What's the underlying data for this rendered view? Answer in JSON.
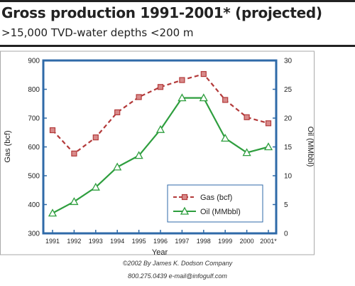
{
  "header": {
    "title": "Gross production 1991-2001* (projected)",
    "subtitle": ">15,000 TVD-water depths <200 m"
  },
  "chart_data": {
    "type": "line",
    "x": [
      "1991",
      "1992",
      "1993",
      "1994",
      "1995",
      "1996",
      "1997",
      "1998",
      "1999",
      "2000",
      "2001*"
    ],
    "xlabel": "Year",
    "ylabel_left": "Gas (bcf)",
    "ylabel_right": "Oil (MMbbl)",
    "ylim_left": [
      300,
      900
    ],
    "ylim_right": [
      0,
      30
    ],
    "yticks_left": [
      "300",
      "400",
      "500",
      "600",
      "700",
      "800",
      "900"
    ],
    "yticks_right": [
      "0",
      "5",
      "10",
      "15",
      "20",
      "25",
      "30"
    ],
    "grid": false,
    "legend_position": "lower-right",
    "series": [
      {
        "name": "Gas (bcf)",
        "axis": "left",
        "color": "#b33a3a",
        "marker": "square",
        "linestyle": "dashed",
        "values": [
          658,
          577,
          633,
          720,
          773,
          808,
          832,
          853,
          763,
          703,
          682
        ]
      },
      {
        "name": "Oil (MMbbl)",
        "axis": "right",
        "color": "#2e9e3e",
        "marker": "triangle",
        "linestyle": "solid",
        "values": [
          3.5,
          5.5,
          8.0,
          11.5,
          13.5,
          18.0,
          23.5,
          23.5,
          16.5,
          14.0,
          15.0
        ]
      }
    ]
  },
  "footer": {
    "credit_line_1": "©2002 By James K. Dodson Company",
    "credit_line_2": "800.275.0439 e-mail@infogulf.com"
  },
  "colors": {
    "plot_border": "#2f6aa8",
    "plot_background": "#ffffff",
    "outer_frame": "#aaaaaa"
  }
}
